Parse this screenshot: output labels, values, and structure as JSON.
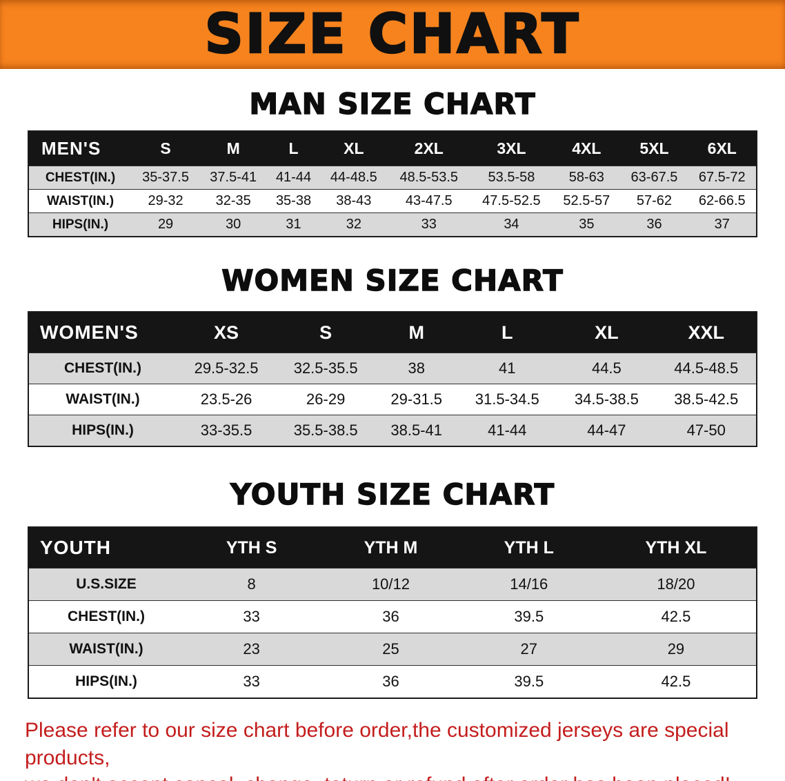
{
  "banner": {
    "title": "SIZE CHART"
  },
  "colors": {
    "banner_bg": "#f6831e",
    "header_bg": "#151515",
    "row_alt_bg": "#d9d9d9",
    "row_white_bg": "#ffffff",
    "disclaimer_red": "#c41d1d"
  },
  "sections": {
    "men": {
      "heading": "MAN SIZE CHART",
      "corner": "MEN'S",
      "columns": [
        "S",
        "M",
        "L",
        "XL",
        "2XL",
        "3XL",
        "4XL",
        "5XL",
        "6XL"
      ],
      "rows": [
        {
          "label": "CHEST(IN.)",
          "values": [
            "35-37.5",
            "37.5-41",
            "41-44",
            "44-48.5",
            "48.5-53.5",
            "53.5-58",
            "58-63",
            "63-67.5",
            "67.5-72"
          ]
        },
        {
          "label": "WAIST(IN.)",
          "values": [
            "29-32",
            "32-35",
            "35-38",
            "38-43",
            "43-47.5",
            "47.5-52.5",
            "52.5-57",
            "57-62",
            "62-66.5"
          ]
        },
        {
          "label": "HIPS(IN.)",
          "values": [
            "29",
            "30",
            "31",
            "32",
            "33",
            "34",
            "35",
            "36",
            "37"
          ]
        }
      ]
    },
    "women": {
      "heading": "WOMEN SIZE CHART",
      "corner": "WOMEN'S",
      "columns": [
        "XS",
        "S",
        "M",
        "L",
        "XL",
        "XXL"
      ],
      "rows": [
        {
          "label": "CHEST(IN.)",
          "values": [
            "29.5-32.5",
            "32.5-35.5",
            "38",
            "41",
            "44.5",
            "44.5-48.5"
          ]
        },
        {
          "label": "WAIST(IN.)",
          "values": [
            "23.5-26",
            "26-29",
            "29-31.5",
            "31.5-34.5",
            "34.5-38.5",
            "38.5-42.5"
          ]
        },
        {
          "label": "HIPS(IN.)",
          "values": [
            "33-35.5",
            "35.5-38.5",
            "38.5-41",
            "41-44",
            "44-47",
            "47-50"
          ]
        }
      ]
    },
    "youth": {
      "heading": "YOUTH SIZE CHART",
      "corner": "YOUTH",
      "columns": [
        "YTH S",
        "YTH M",
        "YTH L",
        "YTH XL"
      ],
      "rows": [
        {
          "label": "U.S.SIZE",
          "values": [
            "8",
            "10/12",
            "14/16",
            "18/20"
          ]
        },
        {
          "label": "CHEST(IN.)",
          "values": [
            "33",
            "36",
            "39.5",
            "42.5"
          ]
        },
        {
          "label": "WAIST(IN.)",
          "values": [
            "23",
            "25",
            "27",
            "29"
          ]
        },
        {
          "label": "HIPS(IN.)",
          "values": [
            "33",
            "36",
            "39.5",
            "42.5"
          ]
        }
      ]
    }
  },
  "disclaimer": {
    "line1": "Please refer to our size chart before order,the customized jerseys are special products,",
    "line2": "we don't accept cancel, change, teturn or refund after order has been placed!"
  }
}
